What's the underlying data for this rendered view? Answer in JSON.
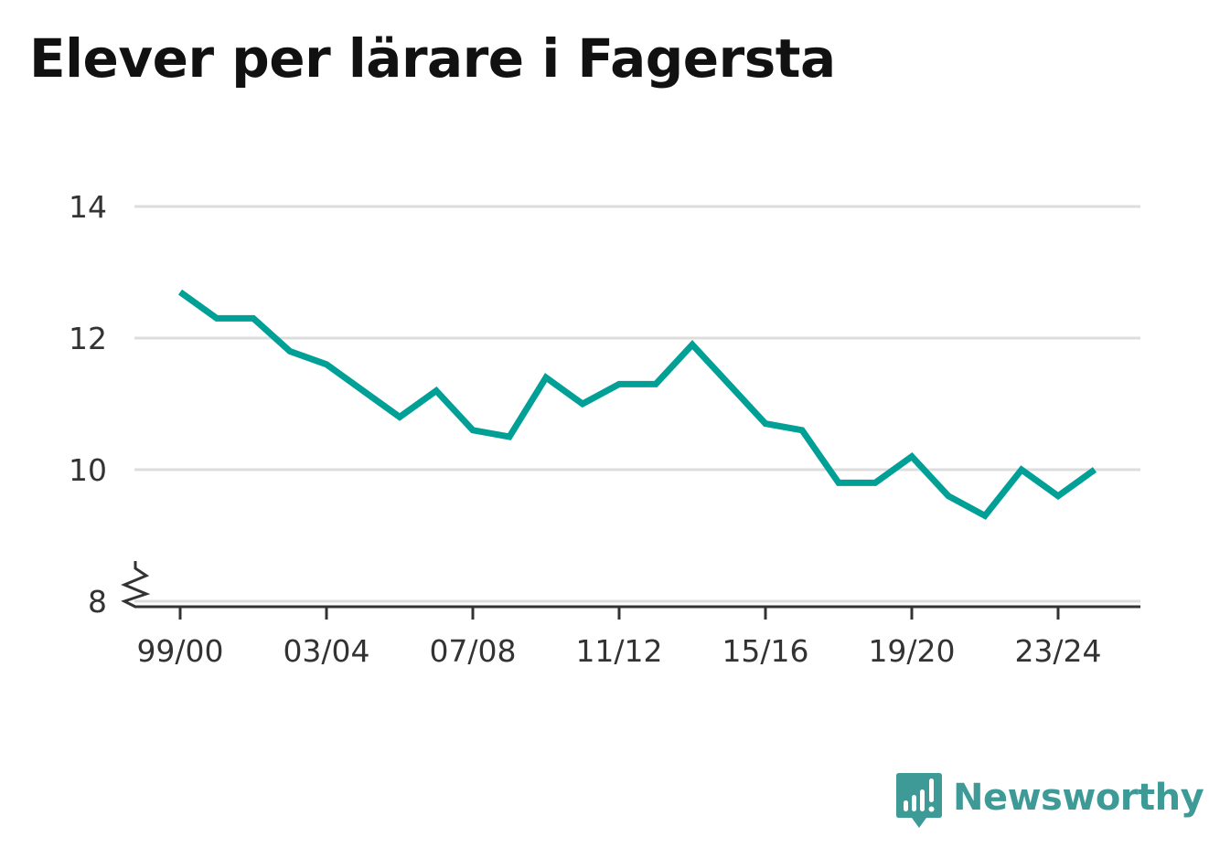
{
  "title": "Elever per lärare i Fagersta",
  "brand": {
    "name": "Newsworthy",
    "logo_icon": "newsworthy-logo-icon",
    "color": "#3e9a96"
  },
  "chart_data": {
    "type": "line",
    "title": "Elever per lärare i Fagersta",
    "xlabel": "",
    "ylabel": "",
    "ylim": [
      8,
      14
    ],
    "y_axis_break": true,
    "yticks": [
      8,
      10,
      12,
      14
    ],
    "grid": true,
    "legend": "none",
    "x": [
      "99/00",
      "00/01",
      "01/02",
      "02/03",
      "03/04",
      "04/05",
      "05/06",
      "06/07",
      "07/08",
      "08/09",
      "09/10",
      "10/11",
      "11/12",
      "12/13",
      "13/14",
      "14/15",
      "15/16",
      "16/17",
      "17/18",
      "18/19",
      "19/20",
      "20/21",
      "21/22",
      "22/23",
      "23/24",
      "24/25"
    ],
    "xtick_labels": [
      "99/00",
      "03/04",
      "07/08",
      "11/12",
      "15/16",
      "19/20",
      "23/24"
    ],
    "series": [
      {
        "color": "#00a096",
        "values": [
          12.7,
          12.3,
          12.3,
          11.8,
          11.6,
          11.2,
          10.8,
          11.2,
          10.6,
          10.5,
          11.4,
          11.0,
          11.3,
          11.3,
          11.9,
          11.3,
          10.7,
          10.6,
          9.8,
          9.8,
          10.2,
          9.6,
          9.3,
          10.0,
          9.6,
          10.0
        ]
      }
    ]
  }
}
